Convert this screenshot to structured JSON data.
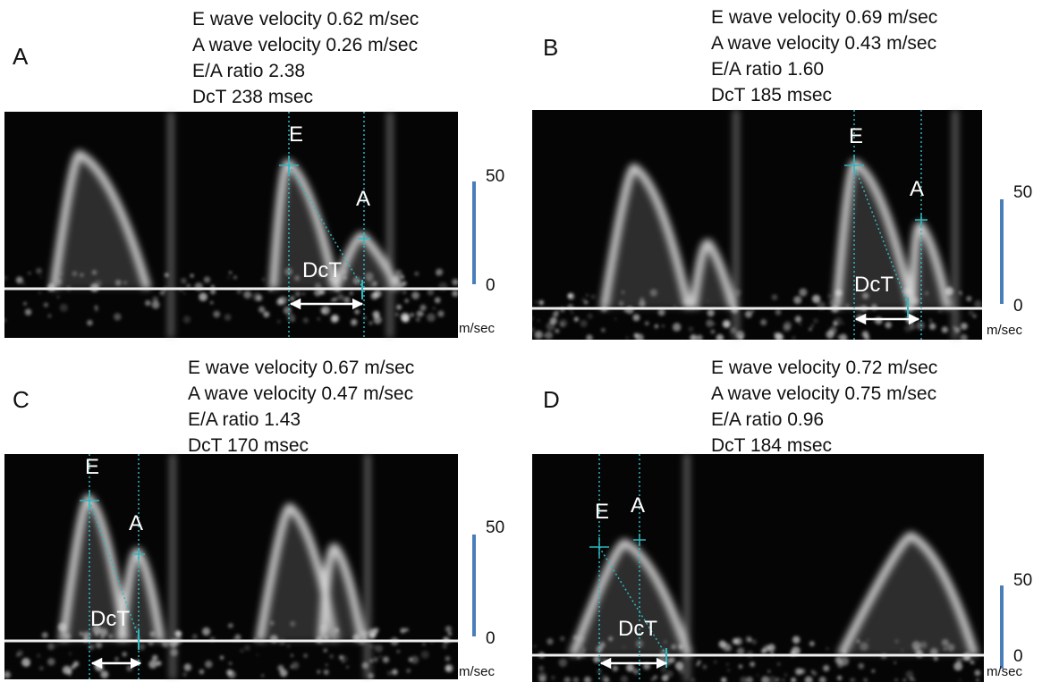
{
  "panels": [
    {
      "label": "A",
      "measurements": [
        "E wave velocity 0.62 m/sec",
        "A wave velocity 0.26 m/sec",
        "E/A ratio 2.38",
        "DcT 238 msec"
      ],
      "markers": {
        "e": "E",
        "a": "A",
        "dct": "DcT"
      },
      "scale": {
        "top": "50",
        "bottom": "0",
        "unit": "m/sec"
      }
    },
    {
      "label": "B",
      "measurements": [
        "E wave velocity 0.69 m/sec",
        "A wave velocity 0.43 m/sec",
        "E/A ratio 1.60",
        "DcT 185 msec"
      ],
      "markers": {
        "e": "E",
        "a": "A",
        "dct": "DcT"
      },
      "scale": {
        "top": "50",
        "bottom": "0",
        "unit": "m/sec"
      }
    },
    {
      "label": "C",
      "measurements": [
        "E wave velocity 0.67 m/sec",
        "A wave velocity 0.47 m/sec",
        "E/A ratio 1.43",
        "DcT 170 msec"
      ],
      "markers": {
        "e": "E",
        "a": "A",
        "dct": "DcT"
      },
      "scale": {
        "top": "50",
        "bottom": "0",
        "unit": "m/sec"
      }
    },
    {
      "label": "D",
      "measurements": [
        "E wave velocity 0.72 m/sec",
        "A wave velocity 0.75 m/sec",
        "E/A ratio 0.96",
        "DcT 184 msec"
      ],
      "markers": {
        "e": "E",
        "a": "A",
        "dct": "DcT"
      },
      "scale": {
        "top": "50",
        "bottom": "0",
        "unit": "m/sec"
      }
    }
  ]
}
